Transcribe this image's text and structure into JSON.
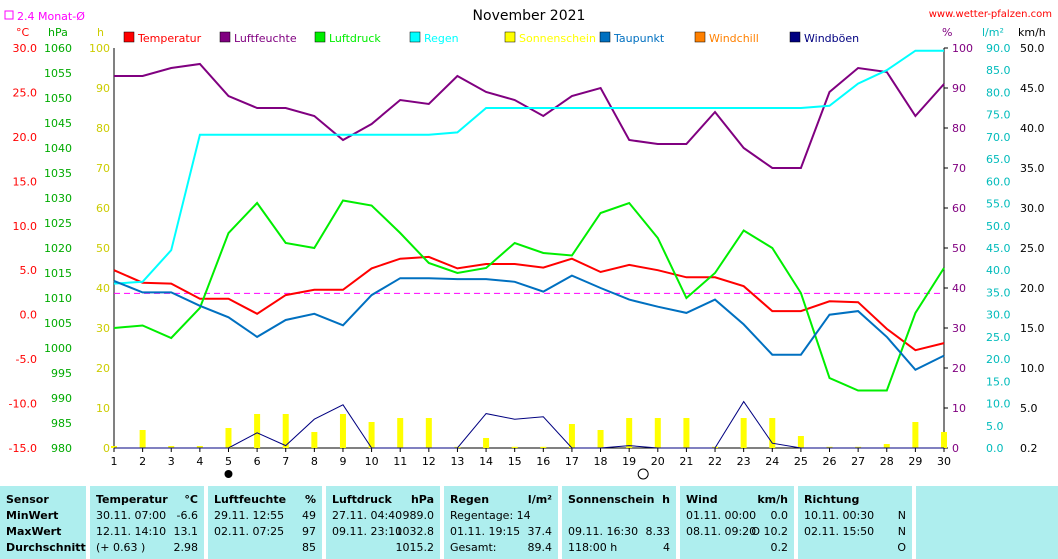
{
  "header": {
    "title": "November 2021",
    "site": "www.wetter-pfalzen.com",
    "avg_label": "2.4 Monat-Ø"
  },
  "units": {
    "temp": "°C",
    "hpa": "hPa",
    "h": "h",
    "pct": "%",
    "lm2": "l/m²",
    "kmh": "km/h"
  },
  "legend": [
    {
      "label": "Temperatur",
      "color": "#ff0000"
    },
    {
      "label": "Luftfeuchte",
      "color": "#800080"
    },
    {
      "label": "Luftdruck",
      "color": "#00ee00"
    },
    {
      "label": "Regen",
      "color": "#00ffff"
    },
    {
      "label": "Sonnenschein",
      "color": "#ffff00"
    },
    {
      "label": "Taupunkt",
      "color": "#0070c0"
    },
    {
      "label": "Windchill",
      "color": "#ff8000"
    },
    {
      "label": "Windböen",
      "color": "#000080"
    }
  ],
  "chart_data": {
    "type": "line",
    "title": "November 2021",
    "x": [
      1,
      2,
      3,
      4,
      5,
      6,
      7,
      8,
      9,
      10,
      11,
      12,
      13,
      14,
      15,
      16,
      17,
      18,
      19,
      20,
      21,
      22,
      23,
      24,
      25,
      26,
      27,
      28,
      29,
      30
    ],
    "axes": {
      "temp": {
        "min": -15,
        "max": 30,
        "ticks": [
          "30.0",
          "25.0",
          "20.0",
          "15.0",
          "10.0",
          "5.0",
          "0.0",
          "-5.0",
          "-10.0",
          "-15.0"
        ]
      },
      "hpa": {
        "min": 980,
        "max": 1060,
        "ticks": [
          "1060",
          "1055",
          "1050",
          "1045",
          "1040",
          "1035",
          "1030",
          "1025",
          "1020",
          "1015",
          "1010",
          "1005",
          "1000",
          "995",
          "990",
          "985",
          "980"
        ]
      },
      "h": {
        "min": 0,
        "max": 100,
        "ticks": [
          "100",
          "90",
          "80",
          "70",
          "60",
          "50",
          "40",
          "30",
          "20",
          "10",
          "0"
        ]
      },
      "pct": {
        "min": 0,
        "max": 100,
        "ticks": [
          "100",
          "90",
          "80",
          "70",
          "60",
          "50",
          "40",
          "30",
          "20",
          "10",
          "0"
        ]
      },
      "lm2": {
        "min": 0,
        "max": 90,
        "ticks": [
          "90.0",
          "85.0",
          "80.0",
          "75.0",
          "70.0",
          "65.0",
          "60.0",
          "55.0",
          "50.0",
          "45.0",
          "40.0",
          "35.0",
          "30.0",
          "25.0",
          "20.0",
          "15.0",
          "10.0",
          "5.0",
          "0.0"
        ]
      },
      "kmh": {
        "min": 0,
        "max": 50,
        "ticks": [
          "50.0",
          "45.0",
          "40.0",
          "35.0",
          "30.0",
          "25.0",
          "20.0",
          "15.0",
          "10.0",
          "5.0",
          "0.2"
        ]
      }
    },
    "avg_temp": 2.4,
    "series": [
      {
        "name": "Temperatur",
        "color": "#ff0000",
        "axis": "temp",
        "values": [
          5.0,
          3.6,
          3.5,
          1.8,
          1.8,
          0.1,
          2.2,
          2.8,
          2.8,
          5.2,
          6.3,
          6.5,
          5.2,
          5.7,
          5.7,
          5.3,
          6.3,
          4.8,
          5.6,
          5.0,
          4.2,
          4.2,
          3.2,
          0.4,
          0.4,
          1.5,
          1.4,
          -1.6,
          -4.0,
          -3.2
        ]
      },
      {
        "name": "Luftfeuchte",
        "color": "#800080",
        "axis": "pct",
        "values": [
          93,
          93,
          95,
          96,
          88,
          85,
          85,
          83,
          77,
          81,
          87,
          86,
          93,
          89,
          87,
          83,
          88,
          90,
          77,
          76,
          76,
          84,
          75,
          70,
          70,
          89,
          95,
          94,
          83,
          91
        ]
      },
      {
        "name": "Luftdruck",
        "color": "#00ee00",
        "axis": "hpa",
        "values": [
          1004,
          1004.5,
          1002,
          1008,
          1023,
          1029,
          1021,
          1020,
          1029.5,
          1028.5,
          1023,
          1017,
          1015,
          1016,
          1021,
          1019,
          1018.5,
          1027,
          1029,
          1022,
          1010,
          1015,
          1023.5,
          1020,
          1011,
          994,
          991.5,
          991.5,
          1007,
          1016
        ]
      },
      {
        "name": "Regen",
        "color": "#00ffff",
        "axis": "lm2",
        "values": [
          37.0,
          37.4,
          44.5,
          70.5,
          70.5,
          70.5,
          70.5,
          70.5,
          70.5,
          70.5,
          70.5,
          70.5,
          71.0,
          76.5,
          76.5,
          76.5,
          76.5,
          76.5,
          76.5,
          76.5,
          76.5,
          76.5,
          76.5,
          76.5,
          76.5,
          77.0,
          82.0,
          85.0,
          89.4,
          89.4
        ]
      },
      {
        "name": "Taupunkt",
        "color": "#0070c0",
        "axis": "temp",
        "values": [
          3.8,
          2.5,
          2.5,
          1.0,
          -0.3,
          -2.5,
          -0.6,
          0.1,
          -1.2,
          2.2,
          4.1,
          4.1,
          4.0,
          4.0,
          3.7,
          2.6,
          4.4,
          3.0,
          1.7,
          0.9,
          0.2,
          1.7,
          -1.1,
          -4.5,
          -4.5,
          0.0,
          0.4,
          -2.5,
          -6.2,
          -4.6
        ]
      },
      {
        "name": "Windböen",
        "color": "#000080",
        "axis": "kmh",
        "values": [
          0,
          0,
          0,
          0,
          0,
          1.9,
          0.3,
          3.6,
          5.4,
          0,
          0,
          0,
          0,
          4.3,
          3.6,
          3.9,
          0,
          0,
          0.3,
          0,
          0,
          0,
          5.8,
          0.6,
          0,
          0,
          0,
          0,
          0,
          0
        ]
      },
      {
        "name": "Sonnenschein",
        "color": "#ffff00",
        "axis": "h",
        "type": "bar",
        "values": [
          0.5,
          4.5,
          0.5,
          0.5,
          5,
          8.5,
          8.5,
          4,
          8.5,
          6.5,
          7.5,
          7.5,
          0.3,
          2.5,
          0.3,
          0.3,
          6,
          4.5,
          7.5,
          7.5,
          7.5,
          0.3,
          7.5,
          7.5,
          3,
          0.3,
          0.3,
          1,
          6.5,
          4
        ]
      }
    ],
    "moon": {
      "new_moon_day": 5,
      "full_moon_day": 19
    }
  },
  "stats": {
    "sensor": {
      "header": "Sensor",
      "rows": [
        "MinWert",
        "MaxWert",
        "Durchschnitt"
      ]
    },
    "temperatur": {
      "header": "Temperatur",
      "unit": "°C",
      "rows": [
        [
          "30.11.  07:00",
          "-6.6"
        ],
        [
          "12.11.  14:10",
          "13.1"
        ],
        [
          "(+ 0.63 )",
          "2.98"
        ]
      ]
    },
    "luftfeuchte": {
      "header": "Luftfeuchte",
      "unit": "%",
      "rows": [
        [
          "29.11.  12:55",
          "49"
        ],
        [
          "02.11.  07:25",
          "97"
        ],
        [
          "",
          "85"
        ]
      ]
    },
    "luftdruck": {
      "header": "Luftdruck",
      "unit": "hPa",
      "rows": [
        [
          "27.11.  04:40",
          "989.0"
        ],
        [
          "09.11.  23:10",
          "1032.8"
        ],
        [
          "",
          "1015.2"
        ]
      ]
    },
    "regen": {
      "header": "Regen",
      "unit": "l/m²",
      "rows": [
        [
          "Regentage: 14",
          ""
        ],
        [
          "01.11.  19:15",
          "37.4"
        ],
        [
          "Gesamt:",
          "89.4"
        ]
      ]
    },
    "sonnenschein": {
      "header": "Sonnenschein",
      "unit": "h",
      "rows": [
        [
          "",
          ""
        ],
        [
          "09.11.  16:30",
          "8.33"
        ],
        [
          "118:00 h",
          "4"
        ]
      ]
    },
    "wind": {
      "header": "Wind",
      "unit": "km/h",
      "rows": [
        [
          "01.11.  00:00",
          "0.0"
        ],
        [
          "08.11.  09:20",
          "O 10.2"
        ],
        [
          "",
          "0.2"
        ]
      ]
    },
    "richtung": {
      "header": "Richtung",
      "unit": "",
      "rows": [
        [
          "10.11.  00:30",
          "N"
        ],
        [
          "02.11.  15:50",
          "N"
        ],
        [
          "",
          "O"
        ]
      ]
    }
  }
}
